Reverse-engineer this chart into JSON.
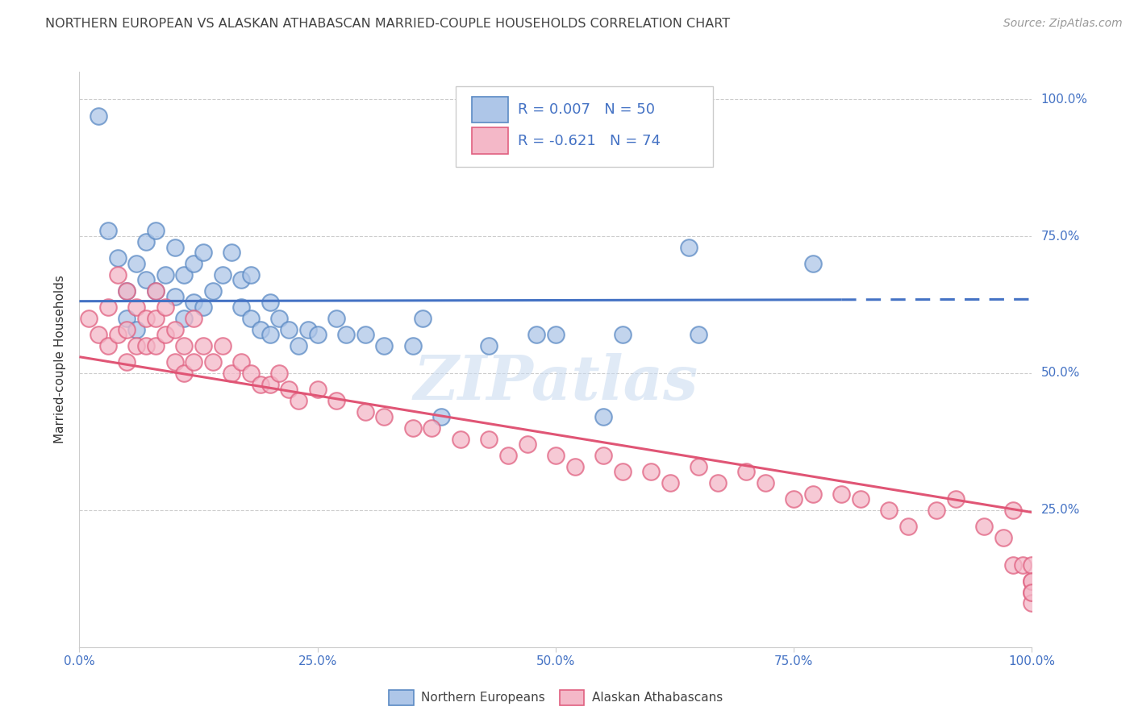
{
  "title": "NORTHERN EUROPEAN VS ALASKAN ATHABASCAN MARRIED-COUPLE HOUSEHOLDS CORRELATION CHART",
  "source": "Source: ZipAtlas.com",
  "ylabel": "Married-couple Households",
  "blue_R": 0.007,
  "blue_N": 50,
  "pink_R": -0.621,
  "pink_N": 74,
  "blue_color": "#aec6e8",
  "pink_color": "#f4b8c8",
  "blue_edge_color": "#5b8ac4",
  "pink_edge_color": "#e06080",
  "blue_line_color": "#4472c4",
  "pink_line_color": "#e05575",
  "watermark": "ZIPatlas",
  "background_color": "#ffffff",
  "grid_color": "#cccccc",
  "tick_color": "#4472c4",
  "title_color": "#444444",
  "source_color": "#999999",
  "ylabel_color": "#333333",
  "legend_label_1": "Northern Europeans",
  "legend_label_2": "Alaskan Athabascans",
  "blue_scatter_x": [
    0.02,
    0.03,
    0.04,
    0.05,
    0.05,
    0.06,
    0.06,
    0.07,
    0.07,
    0.08,
    0.08,
    0.09,
    0.1,
    0.1,
    0.11,
    0.11,
    0.12,
    0.12,
    0.13,
    0.13,
    0.14,
    0.15,
    0.16,
    0.17,
    0.17,
    0.18,
    0.18,
    0.19,
    0.2,
    0.2,
    0.21,
    0.22,
    0.23,
    0.24,
    0.25,
    0.27,
    0.28,
    0.3,
    0.32,
    0.35,
    0.36,
    0.38,
    0.43,
    0.48,
    0.5,
    0.55,
    0.57,
    0.64,
    0.65,
    0.77
  ],
  "blue_scatter_y": [
    0.97,
    0.76,
    0.71,
    0.65,
    0.6,
    0.7,
    0.58,
    0.74,
    0.67,
    0.76,
    0.65,
    0.68,
    0.73,
    0.64,
    0.68,
    0.6,
    0.63,
    0.7,
    0.72,
    0.62,
    0.65,
    0.68,
    0.72,
    0.62,
    0.67,
    0.68,
    0.6,
    0.58,
    0.63,
    0.57,
    0.6,
    0.58,
    0.55,
    0.58,
    0.57,
    0.6,
    0.57,
    0.57,
    0.55,
    0.55,
    0.6,
    0.42,
    0.55,
    0.57,
    0.57,
    0.42,
    0.57,
    0.73,
    0.57,
    0.7
  ],
  "pink_scatter_x": [
    0.01,
    0.02,
    0.03,
    0.03,
    0.04,
    0.04,
    0.05,
    0.05,
    0.05,
    0.06,
    0.06,
    0.07,
    0.07,
    0.08,
    0.08,
    0.08,
    0.09,
    0.09,
    0.1,
    0.1,
    0.11,
    0.11,
    0.12,
    0.12,
    0.13,
    0.14,
    0.15,
    0.16,
    0.17,
    0.18,
    0.19,
    0.2,
    0.21,
    0.22,
    0.23,
    0.25,
    0.27,
    0.3,
    0.32,
    0.35,
    0.37,
    0.4,
    0.43,
    0.45,
    0.47,
    0.5,
    0.52,
    0.55,
    0.57,
    0.6,
    0.62,
    0.65,
    0.67,
    0.7,
    0.72,
    0.75,
    0.77,
    0.8,
    0.82,
    0.85,
    0.87,
    0.9,
    0.92,
    0.95,
    0.97,
    0.98,
    0.98,
    0.99,
    1.0,
    1.0,
    1.0,
    1.0,
    1.0,
    1.0
  ],
  "pink_scatter_y": [
    0.6,
    0.57,
    0.62,
    0.55,
    0.68,
    0.57,
    0.65,
    0.58,
    0.52,
    0.62,
    0.55,
    0.6,
    0.55,
    0.65,
    0.6,
    0.55,
    0.62,
    0.57,
    0.58,
    0.52,
    0.55,
    0.5,
    0.6,
    0.52,
    0.55,
    0.52,
    0.55,
    0.5,
    0.52,
    0.5,
    0.48,
    0.48,
    0.5,
    0.47,
    0.45,
    0.47,
    0.45,
    0.43,
    0.42,
    0.4,
    0.4,
    0.38,
    0.38,
    0.35,
    0.37,
    0.35,
    0.33,
    0.35,
    0.32,
    0.32,
    0.3,
    0.33,
    0.3,
    0.32,
    0.3,
    0.27,
    0.28,
    0.28,
    0.27,
    0.25,
    0.22,
    0.25,
    0.27,
    0.22,
    0.2,
    0.15,
    0.25,
    0.15,
    0.12,
    0.15,
    0.1,
    0.12,
    0.08,
    0.1
  ],
  "xlim": [
    0.0,
    1.0
  ],
  "ylim": [
    0.0,
    1.05
  ],
  "xtick_positions": [
    0.0,
    0.25,
    0.5,
    0.75,
    1.0
  ],
  "xtick_labels": [
    "0.0%",
    "25.0%",
    "50.0%",
    "75.0%",
    "100.0%"
  ],
  "ytick_positions": [
    0.25,
    0.5,
    0.75,
    1.0
  ],
  "ytick_labels": [
    "25.0%",
    "50.0%",
    "75.0%",
    "100.0%"
  ]
}
